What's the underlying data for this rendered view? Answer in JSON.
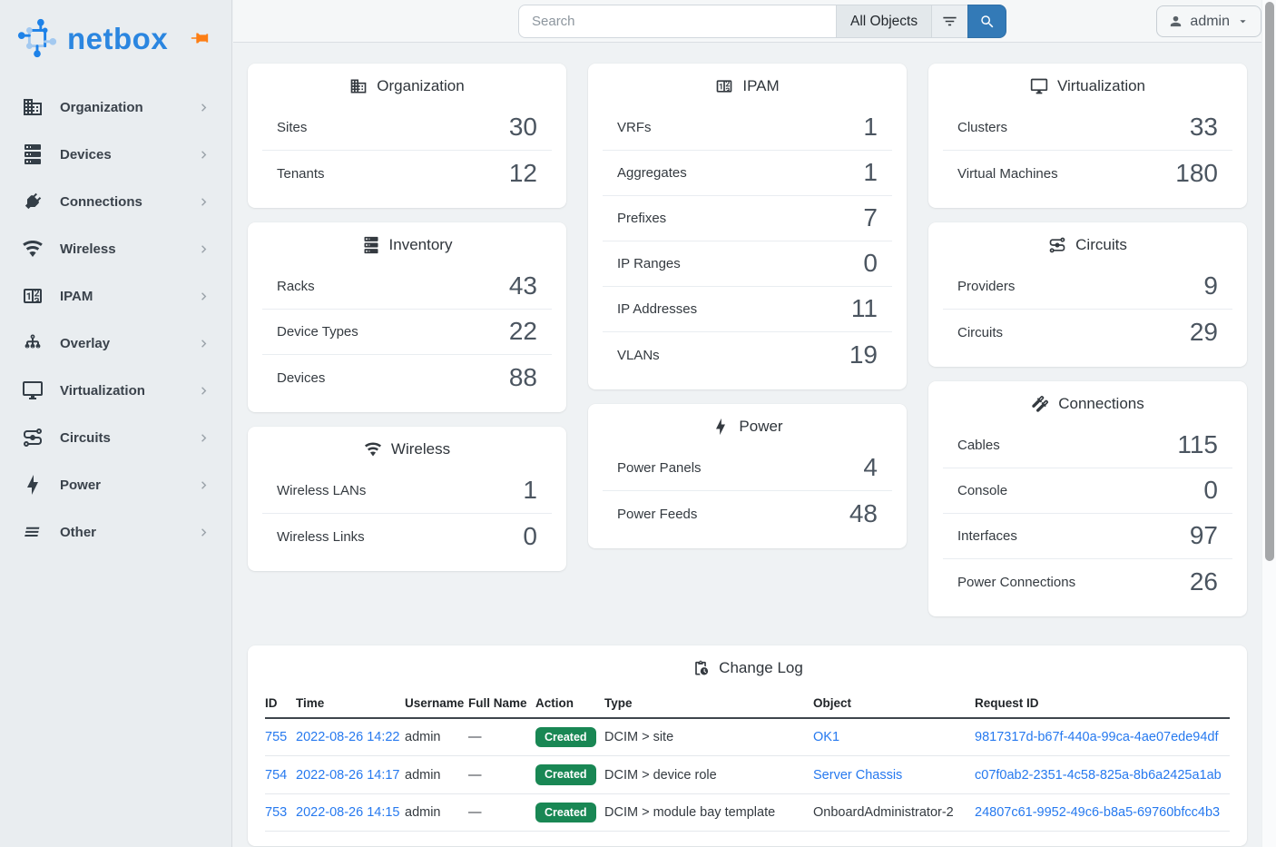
{
  "brand": {
    "name": "netbox"
  },
  "topbar": {
    "search_placeholder": "Search",
    "scope_label": "All Objects",
    "user_label": "admin"
  },
  "sidebar": {
    "items": [
      {
        "label": "Organization",
        "icon": "building"
      },
      {
        "label": "Devices",
        "icon": "server"
      },
      {
        "label": "Connections",
        "icon": "plug"
      },
      {
        "label": "Wireless",
        "icon": "wifi"
      },
      {
        "label": "IPAM",
        "icon": "counter"
      },
      {
        "label": "Overlay",
        "icon": "hierarchy"
      },
      {
        "label": "Virtualization",
        "icon": "monitor"
      },
      {
        "label": "Circuits",
        "icon": "transit"
      },
      {
        "label": "Power",
        "icon": "bolt"
      },
      {
        "label": "Other",
        "icon": "lines"
      }
    ]
  },
  "stat_cards": [
    {
      "id": "organization",
      "title": "Organization",
      "icon": "building",
      "column": 1,
      "rows": [
        {
          "label": "Sites",
          "value": "30"
        },
        {
          "label": "Tenants",
          "value": "12"
        }
      ]
    },
    {
      "id": "inventory",
      "title": "Inventory",
      "icon": "server",
      "column": 1,
      "rows": [
        {
          "label": "Racks",
          "value": "43"
        },
        {
          "label": "Device Types",
          "value": "22"
        },
        {
          "label": "Devices",
          "value": "88"
        }
      ]
    },
    {
      "id": "wireless",
      "title": "Wireless",
      "icon": "wifi",
      "column": 1,
      "rows": [
        {
          "label": "Wireless LANs",
          "value": "1"
        },
        {
          "label": "Wireless Links",
          "value": "0"
        }
      ]
    },
    {
      "id": "ipam",
      "title": "IPAM",
      "icon": "counter",
      "column": 2,
      "rows": [
        {
          "label": "VRFs",
          "value": "1"
        },
        {
          "label": "Aggregates",
          "value": "1"
        },
        {
          "label": "Prefixes",
          "value": "7"
        },
        {
          "label": "IP Ranges",
          "value": "0"
        },
        {
          "label": "IP Addresses",
          "value": "11"
        },
        {
          "label": "VLANs",
          "value": "19"
        }
      ]
    },
    {
      "id": "power",
      "title": "Power",
      "icon": "bolt",
      "column": 2,
      "rows": [
        {
          "label": "Power Panels",
          "value": "4"
        },
        {
          "label": "Power Feeds",
          "value": "48"
        }
      ]
    },
    {
      "id": "virtualization",
      "title": "Virtualization",
      "icon": "monitor",
      "column": 3,
      "rows": [
        {
          "label": "Clusters",
          "value": "33"
        },
        {
          "label": "Virtual Machines",
          "value": "180"
        }
      ]
    },
    {
      "id": "circuits",
      "title": "Circuits",
      "icon": "transit",
      "column": 3,
      "rows": [
        {
          "label": "Providers",
          "value": "9"
        },
        {
          "label": "Circuits",
          "value": "29"
        }
      ]
    },
    {
      "id": "connections",
      "title": "Connections",
      "icon": "cable",
      "column": 3,
      "rows": [
        {
          "label": "Cables",
          "value": "115"
        },
        {
          "label": "Console",
          "value": "0"
        },
        {
          "label": "Interfaces",
          "value": "97"
        },
        {
          "label": "Power Connections",
          "value": "26"
        }
      ]
    }
  ],
  "changelog": {
    "title": "Change Log",
    "icon": "clipboard-clock",
    "columns": [
      "ID",
      "Time",
      "Username",
      "Full Name",
      "Action",
      "Type",
      "Object",
      "Request ID"
    ],
    "rows": [
      {
        "id": "755",
        "time": "2022-08-26 14:22",
        "username": "admin",
        "full_name": "—",
        "action": "Created",
        "type": "DCIM > site",
        "object": "OK1",
        "object_is_link": true,
        "request_id": "9817317d-b67f-440a-99ca-4ae07ede94df"
      },
      {
        "id": "754",
        "time": "2022-08-26 14:17",
        "username": "admin",
        "full_name": "—",
        "action": "Created",
        "type": "DCIM > device role",
        "object": "Server Chassis",
        "object_is_link": true,
        "request_id": "c07f0ab2-2351-4c58-825a-8b6a2425a1ab"
      },
      {
        "id": "753",
        "time": "2022-08-26 14:15",
        "username": "admin",
        "full_name": "—",
        "action": "Created",
        "type": "DCIM > module bay template",
        "object": "OnboardAdministrator-2",
        "object_is_link": false,
        "request_id": "24807c61-9952-49c6-b8a5-69760bfcc4b3"
      }
    ]
  },
  "colors": {
    "accent_button": "#337ab7",
    "link": "#2679ef",
    "badge_created": "#198754",
    "brand_blue": "#2b86e0",
    "pin_orange": "#fd7e14"
  }
}
